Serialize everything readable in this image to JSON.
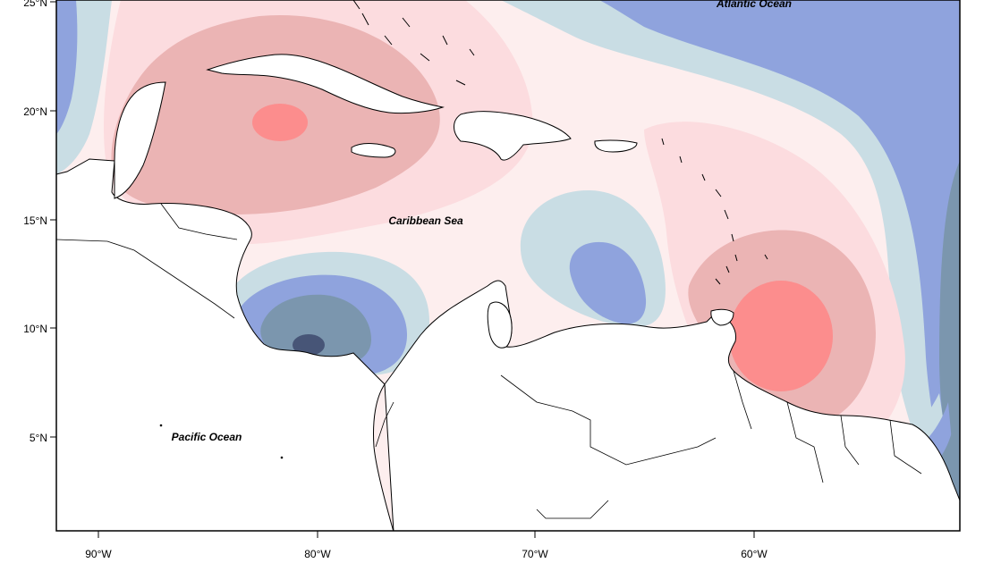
{
  "map": {
    "y_axis_labels": [
      "25°N",
      "20°N",
      "15°N",
      "10°N",
      "5°N"
    ],
    "x_axis_labels": [
      "90°W",
      "80°W",
      "70°W",
      "60°W"
    ],
    "labels": {
      "atlantic": "Atlantic Ocean",
      "caribbean": "Caribbean Sea",
      "pacific": "Pacific Ocean"
    },
    "colors": {
      "frame": "#000000",
      "land": "#ffffff",
      "strong_positive": "#fc8d8d",
      "positive": "#ebb4b4",
      "weak_positive": "#fcdcdf",
      "faint_positive": "#fdeeee",
      "faint_negative": "#c9dde4",
      "negative": "#8fa3dd",
      "strong_negative": "#7b96ae",
      "very_strong_negative": "#475577"
    }
  }
}
